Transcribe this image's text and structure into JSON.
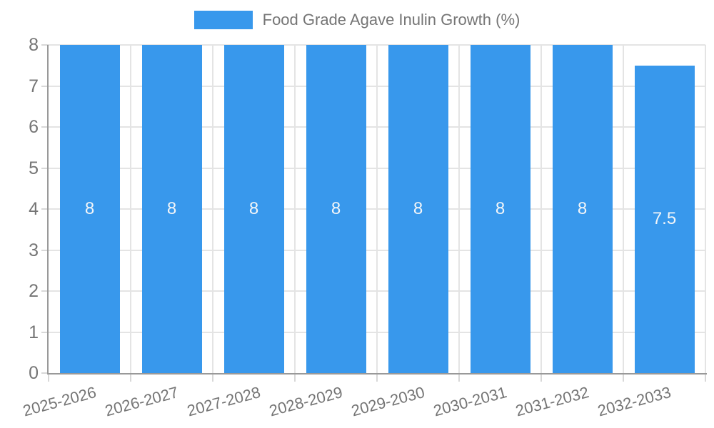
{
  "chart_data": {
    "type": "bar",
    "title": "Food Grade Agave Inulin Growth (%)",
    "categories": [
      "2025-2026",
      "2026-2027",
      "2027-2028",
      "2028-2029",
      "2029-2030",
      "2030-2031",
      "2031-2032",
      "2032-2033"
    ],
    "values": [
      8,
      8,
      8,
      8,
      8,
      8,
      8,
      7.5
    ],
    "bar_labels": [
      "8",
      "8",
      "8",
      "8",
      "8",
      "8",
      "8",
      "7.5"
    ],
    "xlabel": "",
    "ylabel": "",
    "ylim": [
      0,
      8
    ],
    "y_ticks": [
      0,
      1,
      2,
      3,
      4,
      5,
      6,
      7,
      8
    ],
    "grid": true,
    "legend_position": "top",
    "x_label_rotation_deg": -15,
    "colors": {
      "bar": "#3898ec",
      "bar_label_text": "#f2f5f8",
      "axis_text": "#757575",
      "grid_line": "#e4e4e4",
      "tick_line": "#d8d8d8",
      "axis_line": "#999999",
      "background": "#ffffff"
    }
  }
}
